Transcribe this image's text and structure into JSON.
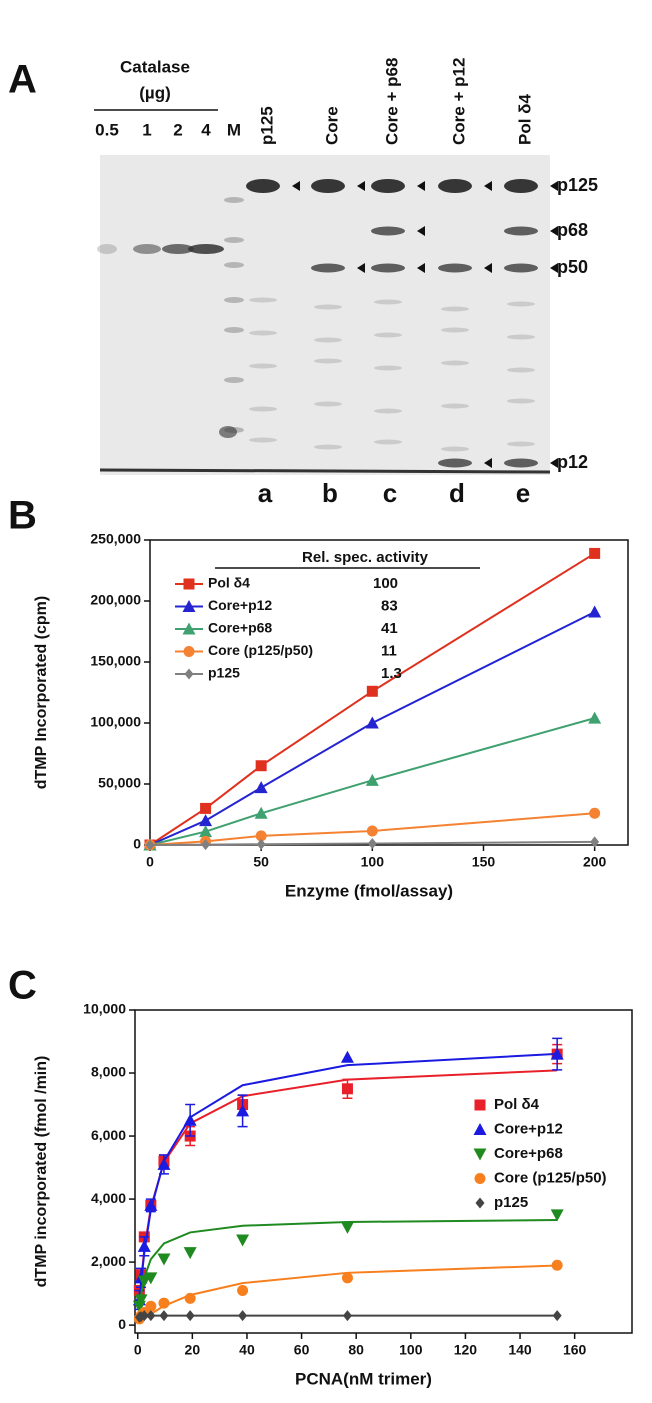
{
  "gel": {
    "panel_label": "A",
    "group_label": "Catalase",
    "group_unit": "(µg)",
    "lanes": [
      "0.5",
      "1",
      "2",
      "4",
      "M"
    ],
    "sample_labels": [
      "p125",
      "Core",
      "Core + p68",
      "Core + p12",
      "Pol δ4"
    ],
    "lane_letters": [
      "a",
      "b",
      "c",
      "d",
      "e"
    ],
    "band_labels": [
      "p125",
      "p68",
      "p50",
      "p12"
    ]
  },
  "chart_data": [
    {
      "type": "line",
      "panel_label": "B",
      "x": [
        0,
        25,
        50,
        100,
        200
      ],
      "xlim": [
        0,
        215
      ],
      "xticks": [
        0,
        50,
        100,
        150,
        200
      ],
      "ylim": [
        0,
        250000
      ],
      "yticks": [
        0,
        {
          "value": 50000,
          "label": "50,000"
        },
        {
          "value": 100000,
          "label": "100,000"
        },
        {
          "value": 150000,
          "label": "150,000"
        },
        {
          "value": 200000,
          "label": "200,000"
        },
        {
          "value": 250000,
          "label": "250,000"
        }
      ],
      "x_label": "Enzyme (fmol/assay)",
      "y_label": "dTMP Incorporated (cpm)",
      "legend": "top-left",
      "legend_title": "Rel. spec. activity",
      "series": [
        {
          "name": "Pol δ4",
          "color": "#e0301e",
          "marker": "square",
          "rel_activity": 100,
          "values": [
            0,
            30000,
            65000,
            126000,
            239000
          ]
        },
        {
          "name": "Core+p12",
          "color": "#2424d0",
          "marker": "triangle",
          "rel_activity": 83,
          "values": [
            0,
            20000,
            47000,
            100000,
            191000
          ]
        },
        {
          "name": "Core+p68",
          "color": "#3fa070",
          "marker": "triangle",
          "rel_activity": 41,
          "values": [
            0,
            11000,
            26000,
            53000,
            104000
          ]
        },
        {
          "name": "Core (p125/p50)",
          "color": "#f58232",
          "marker": "circle",
          "rel_activity": 11,
          "values": [
            0,
            3000,
            7500,
            11500,
            26000
          ]
        },
        {
          "name": "p125",
          "color": "#808080",
          "marker": "diamond",
          "rel_activity": 1.3,
          "values": [
            0,
            300,
            600,
            1200,
            2600
          ]
        }
      ]
    },
    {
      "type": "scatter",
      "panel_label": "C",
      "x": [
        0.6,
        1.2,
        2.4,
        4.8,
        9.6,
        19.2,
        38.4,
        76.8,
        153.6
      ],
      "xlim": [
        -1,
        181
      ],
      "xticks": [
        0,
        20,
        40,
        60,
        80,
        100,
        120,
        140,
        160
      ],
      "ylim": [
        -250,
        10000
      ],
      "yticks": [
        0,
        {
          "value": 2000,
          "label": "2,000"
        },
        {
          "value": 4000,
          "label": "4,000"
        },
        {
          "value": 6000,
          "label": "6,000"
        },
        {
          "value": 8000,
          "label": "8,000"
        },
        {
          "value": 10000,
          "label": "10,000"
        }
      ],
      "x_label": "PCNA(nM trimer)",
      "y_label": "dTMP incorporated (fmol /min)",
      "legend": "right",
      "series": [
        {
          "name": "Pol δ4",
          "color": "#e8202a",
          "marker": "square",
          "values": [
            1100,
            1600,
            2800,
            3800,
            5200,
            6000,
            7000,
            7500,
            8600
          ],
          "errors": [
            null,
            null,
            null,
            null,
            200,
            300,
            300,
            300,
            300
          ],
          "fit": [
            764,
            1400,
            2400,
            3733,
            5169,
            6400,
            7264,
            7792,
            8084
          ]
        },
        {
          "name": "Core+p12",
          "color": "#1a1ae0",
          "marker": "triangle",
          "values": [
            800,
            1500,
            2500,
            3800,
            5100,
            6500,
            6800,
            8500,
            8600
          ],
          "errors": [
            300,
            300,
            300,
            200,
            300,
            500,
            500,
            null,
            500
          ],
          "fit": [
            711,
            1317,
            2298,
            3661,
            5205,
            6595,
            7612,
            8249,
            8608
          ]
        },
        {
          "name": "Core+p68",
          "color": "#1f8a1f",
          "marker": "triangle-down",
          "values": [
            600,
            800,
            1400,
            1500,
            2100,
            2300,
            2700,
            3100,
            3500
          ],
          "fit": [
            567,
            971,
            1511,
            2092,
            2590,
            2941,
            3154,
            3272,
            3335
          ]
        },
        {
          "name": "Core (p125/p50)",
          "color": "#f77f1e",
          "marker": "circle",
          "values": [
            200,
            300,
            400,
            600,
            700,
            850,
            1100,
            1500,
            1900
          ],
          "fit": [
            52,
            101,
            193,
            354,
            610,
            956,
            1332,
            1660,
            1892
          ]
        },
        {
          "name": "p125",
          "color": "#444444",
          "marker": "diamond",
          "values": [
            250,
            270,
            300,
            300,
            300,
            300,
            300,
            300,
            300
          ],
          "fit": [
            300,
            300,
            300,
            300,
            300,
            300,
            300,
            300,
            300
          ]
        }
      ]
    }
  ]
}
